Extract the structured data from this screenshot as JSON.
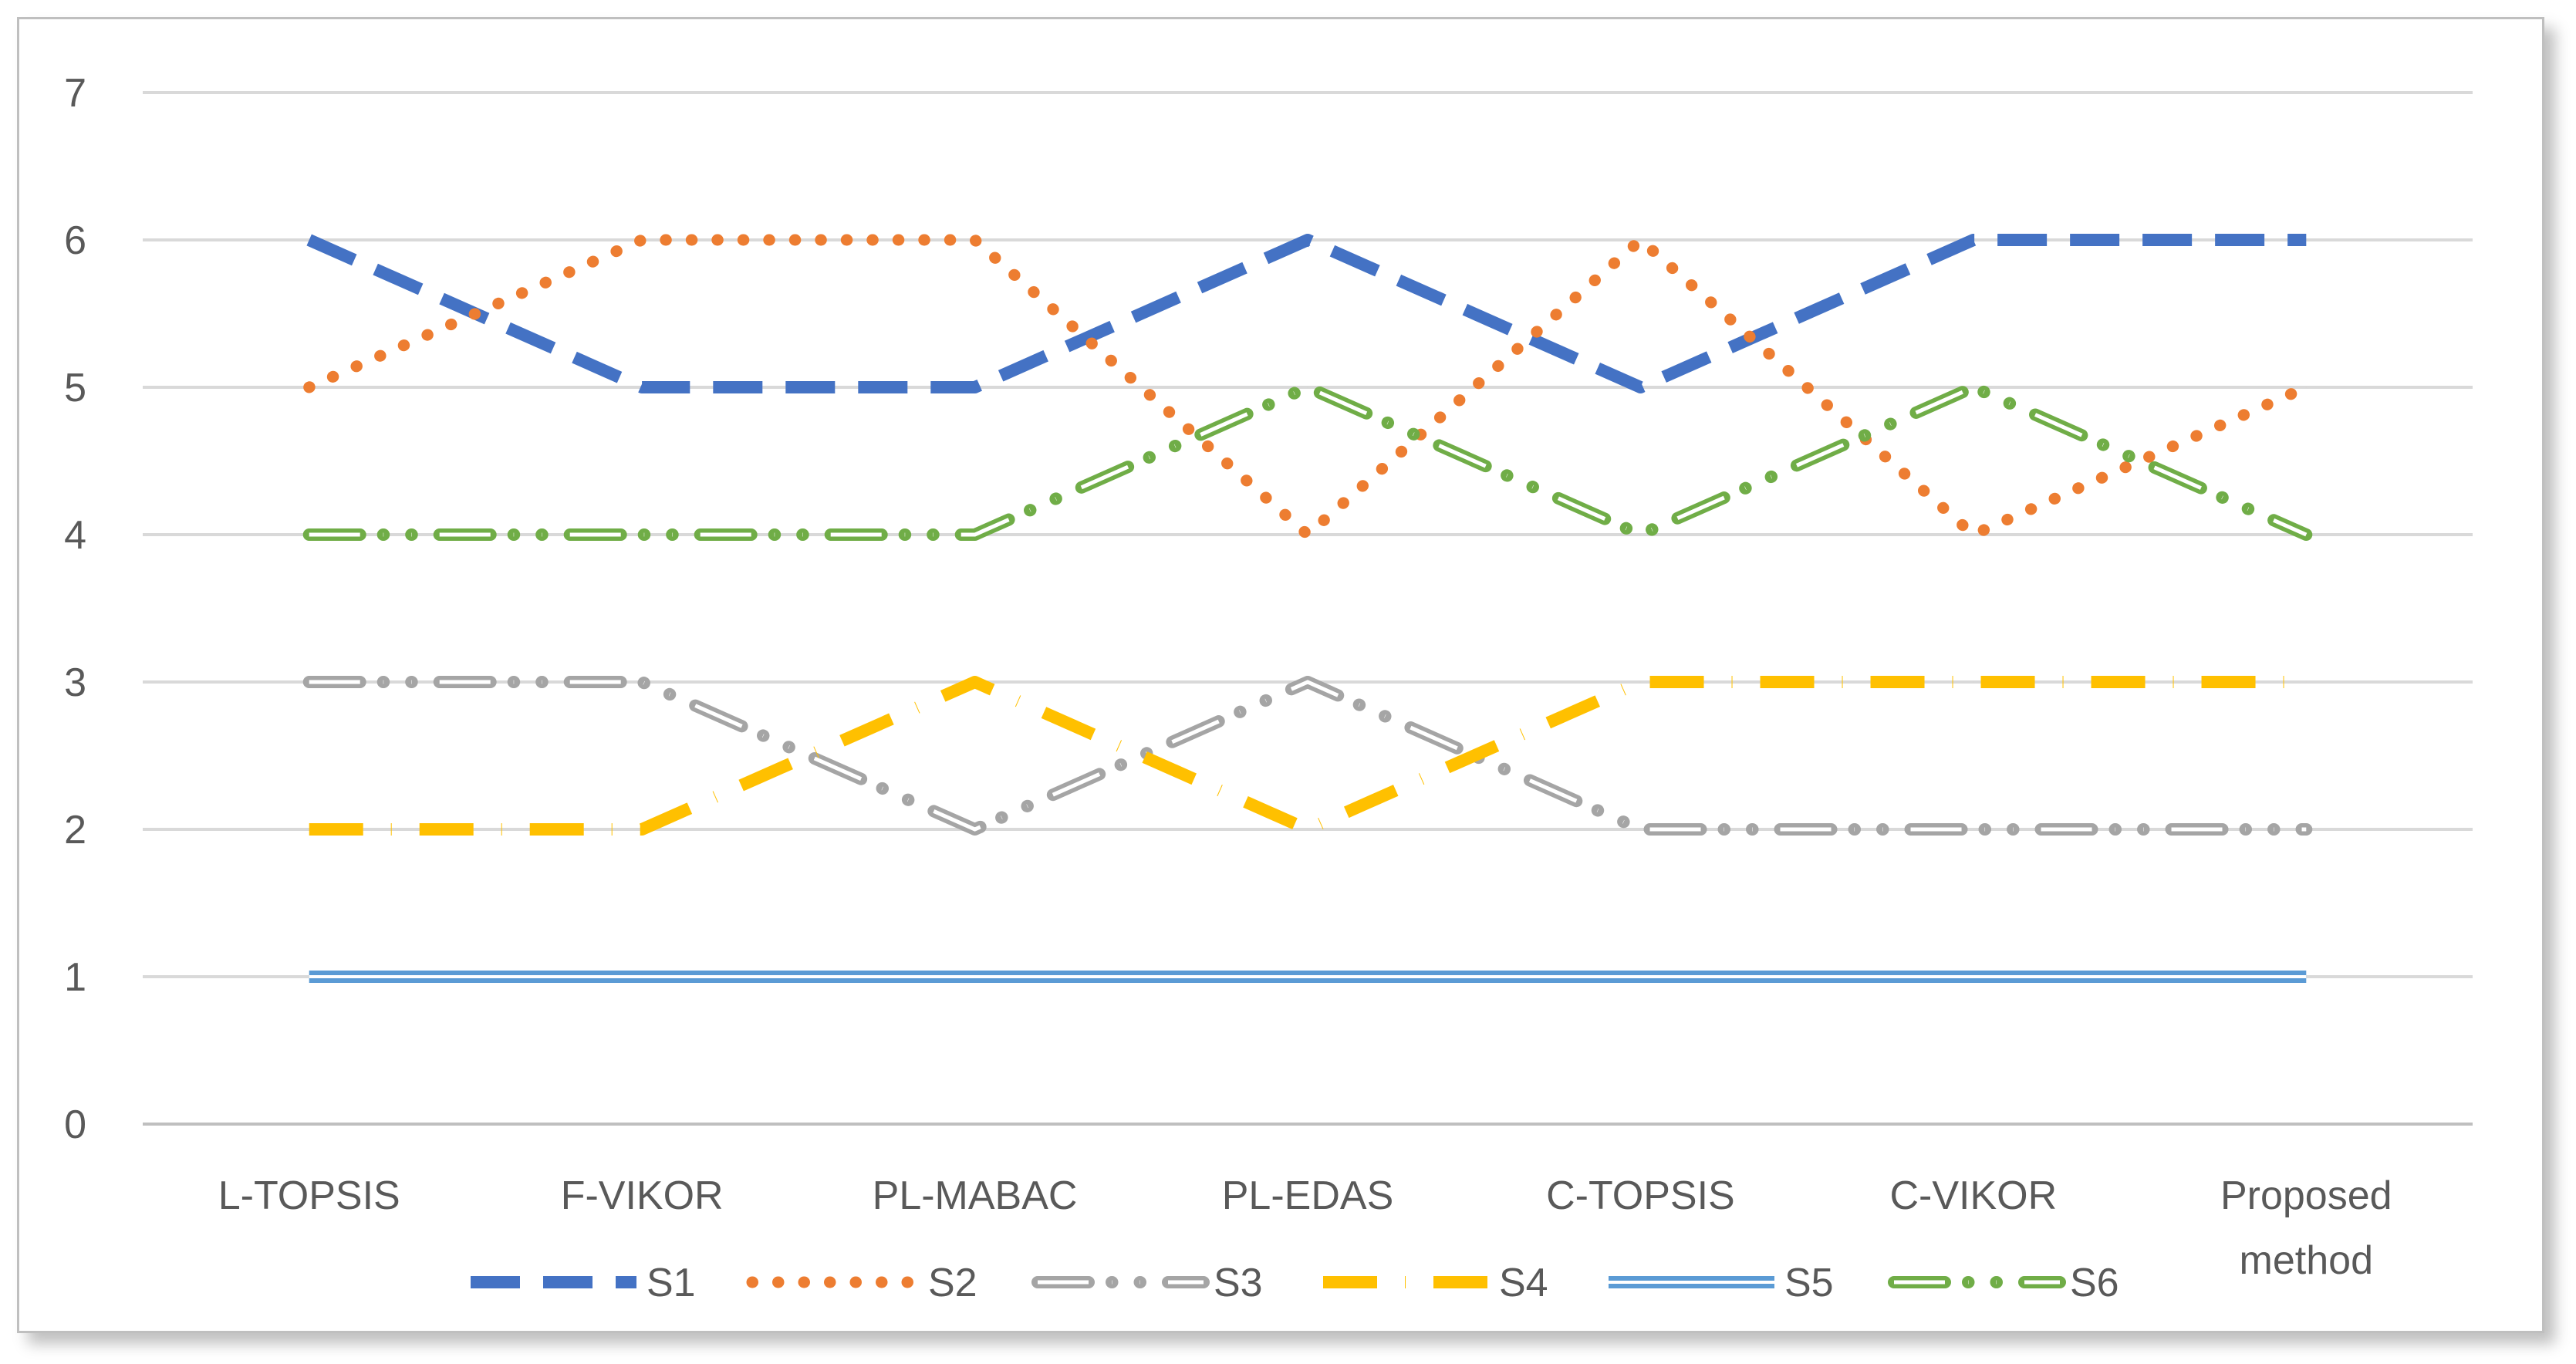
{
  "chart_data": {
    "type": "line",
    "categories": [
      "L-TOPSIS",
      "F-VIKOR",
      "PL-MABAC",
      "PL-EDAS",
      "C-TOPSIS",
      "C-VIKOR",
      "Proposed method"
    ],
    "category_lines": [
      [
        "L-TOPSIS"
      ],
      [
        "F-VIKOR"
      ],
      [
        "PL-MABAC"
      ],
      [
        "PL-EDAS"
      ],
      [
        "C-TOPSIS"
      ],
      [
        "C-VIKOR"
      ],
      [
        "Proposed",
        "method"
      ]
    ],
    "ylim": [
      0,
      7
    ],
    "yticks": [
      0,
      1,
      2,
      3,
      4,
      5,
      6,
      7
    ],
    "grid": true,
    "legend_position": "bottom",
    "series": [
      {
        "name": "S1",
        "values": [
          6,
          5,
          5,
          6,
          5,
          6,
          6
        ],
        "color": "#4472C4",
        "style": "long-dash"
      },
      {
        "name": "S2",
        "values": [
          5,
          6,
          6,
          4,
          6,
          4,
          5
        ],
        "color": "#ED7D31",
        "style": "round-dot"
      },
      {
        "name": "S3",
        "values": [
          3,
          3,
          2,
          3,
          2,
          2,
          2
        ],
        "color": "#A5A5A5",
        "style": "double-dash-dot"
      },
      {
        "name": "S4",
        "values": [
          2,
          2,
          3,
          2,
          3,
          3,
          3
        ],
        "color": "#FFC000",
        "style": "long-dash-dot"
      },
      {
        "name": "S5",
        "values": [
          1,
          1,
          1,
          1,
          1,
          1,
          1
        ],
        "color": "#5B9BD5",
        "style": "double"
      },
      {
        "name": "S6",
        "values": [
          4,
          4,
          4,
          5,
          4,
          5,
          4
        ],
        "color": "#70AD47",
        "style": "double-dash-dot"
      }
    ]
  }
}
